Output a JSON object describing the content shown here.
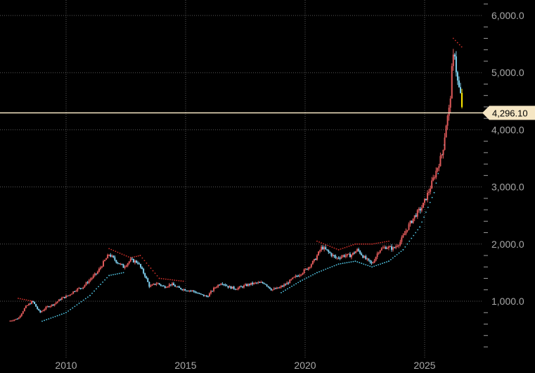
{
  "chart_data": {
    "type": "line",
    "title": "",
    "xlabel": "",
    "ylabel": "",
    "xlim": [
      2007.5,
      2028.5
    ],
    "ylim": [
      -300,
      6500
    ],
    "grid": true,
    "x_ticks": [
      {
        "value": 2010,
        "label": "2010"
      },
      {
        "value": 2015,
        "label": "2015"
      },
      {
        "value": 2020,
        "label": "2020"
      },
      {
        "value": 2025,
        "label": "2025"
      }
    ],
    "y_ticks": [
      {
        "value": 1000,
        "label": "1,000.0"
      },
      {
        "value": 2000,
        "label": "2,000.0"
      },
      {
        "value": 3000,
        "label": "3,000.0"
      },
      {
        "value": 4000,
        "label": "4,000.0"
      },
      {
        "value": 5000,
        "label": "5,000.0"
      },
      {
        "value": 6000,
        "label": "6,000.0"
      }
    ],
    "current_price": {
      "value": 4296.1,
      "label": "4,296.10"
    },
    "colors": {
      "up": "#e05a5a",
      "down": "#7fd0f0",
      "grid": "#585858",
      "price_line": "#f5e6c4",
      "resistance_dots": "#d0302a",
      "support_dots": "#52c9e8",
      "last_candle": "#ffeb00"
    },
    "series": [
      {
        "values": [
          [
            2007.6,
            650
          ],
          [
            2008.0,
            700
          ],
          [
            2008.3,
            900
          ],
          [
            2008.6,
            1000
          ],
          [
            2008.9,
            800
          ],
          [
            2009.2,
            900
          ],
          [
            2009.5,
            950
          ],
          [
            2009.8,
            1050
          ],
          [
            2010.1,
            1100
          ],
          [
            2010.4,
            1200
          ],
          [
            2010.7,
            1250
          ],
          [
            2011.0,
            1380
          ],
          [
            2011.3,
            1500
          ],
          [
            2011.6,
            1700
          ],
          [
            2011.8,
            1820
          ],
          [
            2012.1,
            1700
          ],
          [
            2012.4,
            1600
          ],
          [
            2012.7,
            1720
          ],
          [
            2013.0,
            1680
          ],
          [
            2013.3,
            1450
          ],
          [
            2013.5,
            1250
          ],
          [
            2013.8,
            1320
          ],
          [
            2014.1,
            1250
          ],
          [
            2014.4,
            1300
          ],
          [
            2014.7,
            1230
          ],
          [
            2015.0,
            1200
          ],
          [
            2015.3,
            1180
          ],
          [
            2015.6,
            1120
          ],
          [
            2015.9,
            1080
          ],
          [
            2016.2,
            1230
          ],
          [
            2016.5,
            1330
          ],
          [
            2016.8,
            1250
          ],
          [
            2017.1,
            1220
          ],
          [
            2017.4,
            1260
          ],
          [
            2017.7,
            1300
          ],
          [
            2018.0,
            1320
          ],
          [
            2018.3,
            1320
          ],
          [
            2018.6,
            1200
          ],
          [
            2018.9,
            1230
          ],
          [
            2019.2,
            1300
          ],
          [
            2019.5,
            1400
          ],
          [
            2019.8,
            1480
          ],
          [
            2020.1,
            1580
          ],
          [
            2020.4,
            1720
          ],
          [
            2020.7,
            1950
          ],
          [
            2021.0,
            1850
          ],
          [
            2021.3,
            1750
          ],
          [
            2021.6,
            1800
          ],
          [
            2021.9,
            1800
          ],
          [
            2022.2,
            1900
          ],
          [
            2022.5,
            1750
          ],
          [
            2022.8,
            1650
          ],
          [
            2023.1,
            1900
          ],
          [
            2023.4,
            1950
          ],
          [
            2023.7,
            1920
          ],
          [
            2024.0,
            2050
          ],
          [
            2024.3,
            2300
          ],
          [
            2024.6,
            2500
          ],
          [
            2024.9,
            2650
          ],
          [
            2025.2,
            2950
          ],
          [
            2025.5,
            3300
          ],
          [
            2025.75,
            3600
          ],
          [
            2025.9,
            4100
          ],
          [
            2026.05,
            4400
          ],
          [
            2026.15,
            5100
          ],
          [
            2026.25,
            5400
          ],
          [
            2026.35,
            4900
          ],
          [
            2026.5,
            4600
          ],
          [
            2026.6,
            4296.1
          ]
        ]
      }
    ],
    "trailing_stops": {
      "resistance": [
        [
          2008.0,
          1050
        ],
        [
          2008.6,
          1000
        ],
        [
          2011.8,
          1920
        ],
        [
          2012.7,
          1760
        ],
        [
          2013.1,
          1800
        ],
        [
          2013.9,
          1400
        ],
        [
          2014.9,
          1350
        ],
        [
          2016.6,
          1400
        ],
        [
          2018.0,
          1400
        ],
        [
          2020.5,
          2050
        ],
        [
          2021.4,
          1900
        ],
        [
          2022.1,
          2000
        ],
        [
          2022.8,
          2000
        ],
        [
          2023.5,
          2050
        ],
        [
          2026.2,
          5600
        ],
        [
          2026.55,
          5450
        ]
      ],
      "support": [
        [
          2007.6,
          560
        ],
        [
          2009.0,
          650
        ],
        [
          2010.0,
          800
        ],
        [
          2011.0,
          1100
        ],
        [
          2011.8,
          1450
        ],
        [
          2012.4,
          1500
        ],
        [
          2019.0,
          1150
        ],
        [
          2019.8,
          1350
        ],
        [
          2020.5,
          1500
        ],
        [
          2021.4,
          1650
        ],
        [
          2022.1,
          1700
        ],
        [
          2022.8,
          1600
        ],
        [
          2023.5,
          1700
        ],
        [
          2024.1,
          1900
        ],
        [
          2024.8,
          2300
        ],
        [
          2025.4,
          2900
        ],
        [
          2025.9,
          3900
        ]
      ]
    }
  }
}
